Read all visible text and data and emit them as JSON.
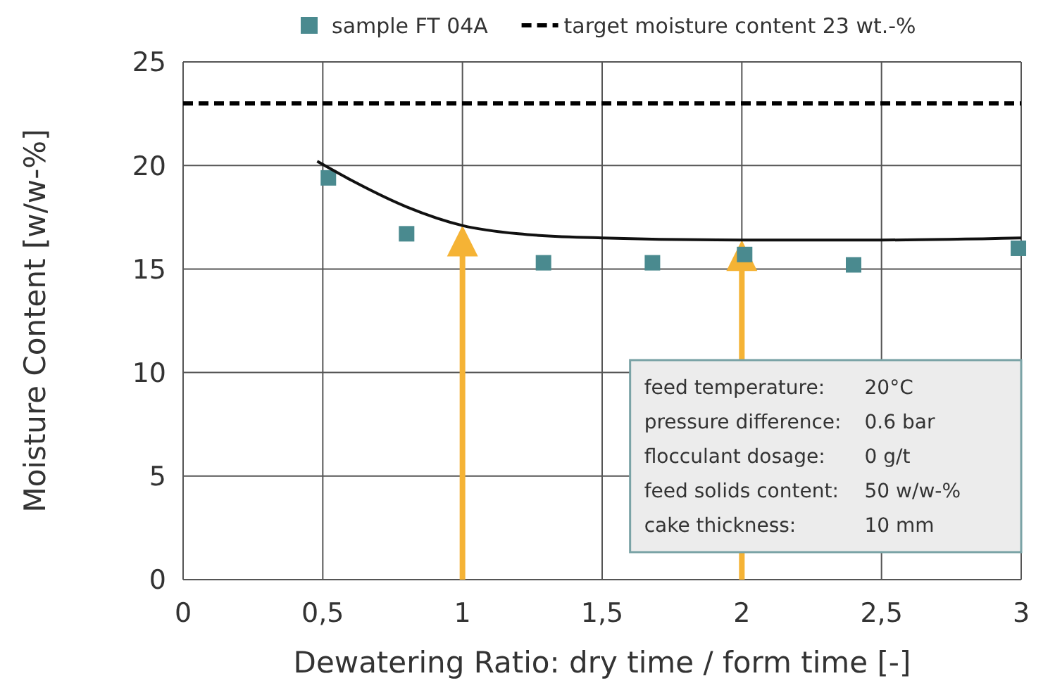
{
  "chart_data": {
    "type": "scatter",
    "xlabel": "Dewatering Ratio: dry time / form time [-]",
    "ylabel": "Moisture Content [w/w-%]",
    "xlim": [
      0,
      3
    ],
    "ylim": [
      0,
      25
    ],
    "xticks": [
      0,
      {
        "value": 0.5,
        "label": "0,5"
      },
      1,
      {
        "value": 1.5,
        "label": "1,5"
      },
      2,
      {
        "value": 2.5,
        "label": "2,5"
      },
      3
    ],
    "yticks": [
      0,
      5,
      10,
      15,
      20,
      25
    ],
    "grid": true,
    "legend": "top",
    "marker": "square",
    "series": [
      {
        "name": "sample FT 04A",
        "color": "#4a8a8f",
        "x": [
          0.52,
          0.8,
          1.29,
          1.68,
          2.01,
          2.4,
          2.99
        ],
        "values": [
          19.4,
          16.7,
          15.3,
          15.3,
          15.7,
          15.2,
          16.0
        ]
      },
      {
        "type": "line",
        "color": "#111111",
        "marker": "none",
        "line_style": "solid",
        "x": [
          0.48,
          0.6,
          0.8,
          1.0,
          1.2,
          1.5,
          2.0,
          2.5,
          3.0
        ],
        "values": [
          20.2,
          19.3,
          18.0,
          17.1,
          16.7,
          16.5,
          16.4,
          16.4,
          16.5
        ]
      }
    ],
    "ref_lines": [
      {
        "axis": "y",
        "value": 23,
        "label": "target moisture content 23 wt.-%",
        "color": "#000000",
        "line_style": "dashed"
      },
      {
        "axis": "x",
        "value": 1,
        "color": "#f5b335"
      },
      {
        "axis": "x",
        "value": 2,
        "color": "#f5b335"
      }
    ],
    "annotations": [
      "feed temperature: 20°C",
      "pressure difference: 0.6 bar",
      "flocculant dosage: 0 g/t",
      "feed solids content: 50 w/w-%",
      "cake thickness: 10 mm"
    ]
  }
}
